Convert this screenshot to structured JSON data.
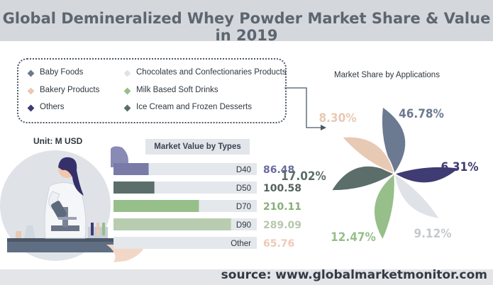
{
  "title": "Global Demineralized Whey Powder Market Share & Value in 2019",
  "source": "source: www.globalmarketmonitor.com",
  "unit_label": "Unit: M USD",
  "legend": [
    {
      "label": "Baby Foods",
      "color": "#6b7a90"
    },
    {
      "label": "Bakery Products",
      "color": "#e8c9b4"
    },
    {
      "label": "Others",
      "color": "#3f3b73"
    },
    {
      "label": "Chocolates and Confectionaries Products",
      "color": "#dfe3e7"
    },
    {
      "label": "Milk Based Soft Drinks",
      "color": "#96bf8a"
    },
    {
      "label": "Ice Cream and Frozen Desserts",
      "color": "#5b6e6a"
    }
  ],
  "chart_data": [
    {
      "type": "bar",
      "title": "Market Value by Types",
      "unit": "M USD",
      "categories": [
        "D40",
        "D50",
        "D70",
        "D90",
        "Other"
      ],
      "values": [
        86.48,
        100.58,
        210.11,
        289.09,
        65.76
      ],
      "value_labels": [
        "86.48",
        "100.58",
        "210.11",
        "289.09",
        "65.76"
      ],
      "colors": [
        "#7a7aa8",
        "#5b6e6a",
        "#96bf8a",
        "#b8cdb0",
        "#f0cdb6"
      ],
      "value_colors": [
        "#6a6aa0",
        "#546260",
        "#86b07a",
        "#b6c8ac",
        "#eec9b4"
      ],
      "xlim": [
        0,
        289.09
      ]
    },
    {
      "type": "pie",
      "title": "Market Share by Applications",
      "categories": [
        "Baby Foods",
        "Others",
        "Chocolates and Confectionaries Products",
        "Milk Based Soft Drinks",
        "Ice Cream and Frozen Desserts",
        "Bakery Products"
      ],
      "values": [
        46.78,
        6.31,
        9.12,
        12.47,
        17.02,
        8.3
      ],
      "value_labels": [
        "46.78%",
        "6.31%",
        "9.12%",
        "12.47%",
        "17.02%",
        "8.30%"
      ],
      "colors": [
        "#6b7a90",
        "#3f3b73",
        "#dfe3e7",
        "#96bf8a",
        "#5b6e6a",
        "#e8c9b4"
      ]
    }
  ]
}
